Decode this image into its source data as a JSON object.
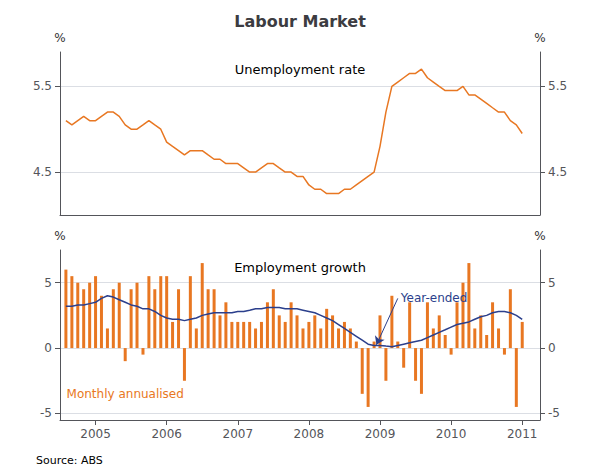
{
  "chart_data": [
    {
      "type": "line",
      "title": "Labour Market",
      "subtitle": "Unemployment rate",
      "ylabel": "%",
      "y2label": "%",
      "x": [
        2004.583,
        2004.667,
        2004.75,
        2004.833,
        2004.917,
        2005.0,
        2005.083,
        2005.167,
        2005.25,
        2005.333,
        2005.417,
        2005.5,
        2005.583,
        2005.667,
        2005.75,
        2005.833,
        2005.917,
        2006.0,
        2006.083,
        2006.167,
        2006.25,
        2006.333,
        2006.417,
        2006.5,
        2006.583,
        2006.667,
        2006.75,
        2006.833,
        2006.917,
        2007.0,
        2007.083,
        2007.167,
        2007.25,
        2007.333,
        2007.417,
        2007.5,
        2007.583,
        2007.667,
        2007.75,
        2007.833,
        2007.917,
        2008.0,
        2008.083,
        2008.167,
        2008.25,
        2008.333,
        2008.417,
        2008.5,
        2008.583,
        2008.667,
        2008.75,
        2008.833,
        2008.917,
        2009.0,
        2009.083,
        2009.167,
        2009.25,
        2009.333,
        2009.417,
        2009.5,
        2009.583,
        2009.667,
        2009.75,
        2009.833,
        2009.917,
        2010.0,
        2010.083,
        2010.167,
        2010.25,
        2010.333,
        2010.417,
        2010.5,
        2010.583,
        2010.667,
        2010.75,
        2010.833,
        2010.917,
        2011.0
      ],
      "values": [
        5.1,
        5.05,
        5.1,
        5.15,
        5.1,
        5.1,
        5.15,
        5.2,
        5.2,
        5.15,
        5.05,
        5.0,
        5.0,
        5.05,
        5.1,
        5.05,
        5.0,
        4.85,
        4.8,
        4.75,
        4.7,
        4.75,
        4.75,
        4.75,
        4.7,
        4.65,
        4.65,
        4.6,
        4.6,
        4.6,
        4.55,
        4.5,
        4.5,
        4.55,
        4.6,
        4.6,
        4.55,
        4.5,
        4.5,
        4.45,
        4.45,
        4.35,
        4.3,
        4.3,
        4.25,
        4.25,
        4.25,
        4.3,
        4.3,
        4.35,
        4.4,
        4.45,
        4.5,
        4.8,
        5.2,
        5.5,
        5.55,
        5.6,
        5.65,
        5.65,
        5.7,
        5.6,
        5.55,
        5.5,
        5.45,
        5.45,
        5.45,
        5.5,
        5.4,
        5.4,
        5.35,
        5.3,
        5.25,
        5.2,
        5.2,
        5.1,
        5.05,
        4.95
      ],
      "color": "#E87722",
      "xlim": [
        2004.5,
        2011.25
      ],
      "ylim": [
        4.0,
        5.9
      ],
      "yticks": [
        4.5,
        5.5
      ],
      "y2lim": [
        4.0,
        5.9
      ],
      "y2ticks": [
        4.5,
        5.5
      ],
      "grid": true,
      "tick_labels": "y"
    },
    {
      "type": "bar",
      "subtitle": "Employment growth",
      "ylabel": "%",
      "y2label": "%",
      "x": [
        2004.583,
        2004.667,
        2004.75,
        2004.833,
        2004.917,
        2005.0,
        2005.083,
        2005.167,
        2005.25,
        2005.333,
        2005.417,
        2005.5,
        2005.583,
        2005.667,
        2005.75,
        2005.833,
        2005.917,
        2006.0,
        2006.083,
        2006.167,
        2006.25,
        2006.333,
        2006.417,
        2006.5,
        2006.583,
        2006.667,
        2006.75,
        2006.833,
        2006.917,
        2007.0,
        2007.083,
        2007.167,
        2007.25,
        2007.333,
        2007.417,
        2007.5,
        2007.583,
        2007.667,
        2007.75,
        2007.833,
        2007.917,
        2008.0,
        2008.083,
        2008.167,
        2008.25,
        2008.333,
        2008.417,
        2008.5,
        2008.583,
        2008.667,
        2008.75,
        2008.833,
        2008.917,
        2009.0,
        2009.083,
        2009.167,
        2009.25,
        2009.333,
        2009.417,
        2009.5,
        2009.583,
        2009.667,
        2009.75,
        2009.833,
        2009.917,
        2010.0,
        2010.083,
        2010.167,
        2010.25,
        2010.333,
        2010.417,
        2010.5,
        2010.583,
        2010.667,
        2010.75,
        2010.833,
        2010.917,
        2011.0
      ],
      "series": [
        {
          "type": "bar",
          "color": "#E87722",
          "values": [
            6.0,
            5.5,
            5.0,
            4.5,
            5.0,
            5.5,
            4.0,
            1.5,
            4.5,
            5.0,
            -1.0,
            4.5,
            5.0,
            -0.5,
            5.5,
            4.5,
            5.5,
            5.5,
            2.0,
            4.5,
            -2.5,
            5.5,
            1.5,
            6.5,
            4.5,
            4.5,
            2.5,
            3.5,
            2.0,
            2.0,
            2.0,
            2.0,
            1.5,
            2.0,
            3.5,
            4.5,
            2.5,
            2.0,
            3.5,
            2.5,
            1.5,
            2.0,
            2.5,
            1.5,
            3.0,
            2.5,
            1.5,
            2.0,
            1.5,
            0.5,
            -3.5,
            -4.5,
            0.5,
            2.5,
            -2.5,
            4.0,
            0.5,
            -1.5,
            3.5,
            -2.5,
            -3.5,
            3.5,
            1.5,
            2.5,
            1.0,
            -0.5,
            3.5,
            5.0,
            6.5,
            1.5,
            2.5,
            1.0,
            3.5,
            1.5,
            -0.5,
            4.5,
            -4.5,
            2.0
          ]
        },
        {
          "type": "line",
          "color": "#2B3F8C",
          "values": [
            3.2,
            3.2,
            3.3,
            3.3,
            3.4,
            3.5,
            3.8,
            4.0,
            3.9,
            3.7,
            3.5,
            3.3,
            3.2,
            3.0,
            3.0,
            2.8,
            2.5,
            2.3,
            2.2,
            2.2,
            2.1,
            2.2,
            2.3,
            2.5,
            2.6,
            2.7,
            2.7,
            2.7,
            2.7,
            2.8,
            2.8,
            2.9,
            3.0,
            3.0,
            3.1,
            3.1,
            3.1,
            3.0,
            3.0,
            3.0,
            2.9,
            2.8,
            2.7,
            2.5,
            2.3,
            2.1,
            1.8,
            1.5,
            1.2,
            0.9,
            0.6,
            0.3,
            0.2,
            0.2,
            0.15,
            0.1,
            0.2,
            0.3,
            0.4,
            0.5,
            0.6,
            0.8,
            1.0,
            1.2,
            1.4,
            1.6,
            1.8,
            1.9,
            2.0,
            2.2,
            2.4,
            2.5,
            2.7,
            2.8,
            2.8,
            2.7,
            2.5,
            2.2
          ]
        }
      ],
      "xlim": [
        2004.5,
        2011.25
      ],
      "xticks": [
        2005,
        2006,
        2007,
        2008,
        2009,
        2010,
        2011
      ],
      "ylim": [
        -5.5,
        7.5
      ],
      "yticks": [
        -5,
        0,
        5
      ],
      "y2lim": [
        -5.5,
        7.5
      ],
      "y2ticks": [
        -5,
        0,
        5
      ],
      "grid": true,
      "annotations": [
        {
          "text": "Year-ended",
          "x": 2009.25,
          "y": 3.8,
          "arrow_x": 2008.95,
          "arrow_y": 0.25,
          "color": "#2B3F8C"
        },
        {
          "text": "Monthly annualised",
          "x": 2004.55,
          "y": -3.5,
          "color": "#E87722"
        }
      ],
      "source": "Source: ABS"
    }
  ]
}
